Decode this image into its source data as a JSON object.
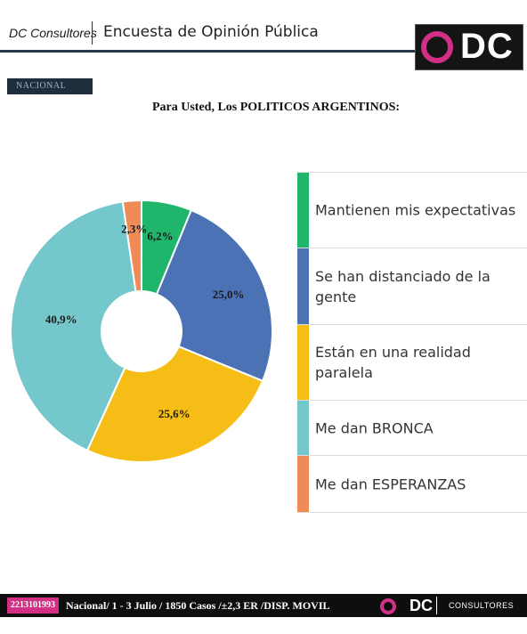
{
  "header": {
    "brand": "DC Consultores",
    "title": "Encuesta de Opinión Pública",
    "logo_text": "DC"
  },
  "badge": "NACIONAL",
  "chart_data": {
    "type": "pie",
    "title": "Para Usted, Los POLITICOS ARGENTINOS:",
    "donut": true,
    "legend_position": "right",
    "start_angle_deg": 0,
    "slices": [
      {
        "label": "Mantienen mis expectativas",
        "value": 6.2,
        "display": "6,2%",
        "color": "#1fb56a"
      },
      {
        "label": "Se han distanciado de la gente",
        "value": 25.0,
        "display": "25,0%",
        "color": "#4a72b5"
      },
      {
        "label": "Están en  una realidad paralela",
        "value": 25.6,
        "display": "25,6%",
        "color": "#f6bd16"
      },
      {
        "label": "Me dan BRONCA",
        "value": 40.9,
        "display": "40,9%",
        "color": "#74c8cb"
      },
      {
        "label": "Me dan ESPERANZAS",
        "value": 2.3,
        "display": "2,3%",
        "color": "#f08a56"
      }
    ]
  },
  "footer": {
    "phone": "2213101993",
    "info": "Nacional/ 1 - 3 Julio / 1850 Casos /±2,3  ER /DISP. MOVIL",
    "logo_text": "DC",
    "logo_sub": "CONSULTORES"
  }
}
